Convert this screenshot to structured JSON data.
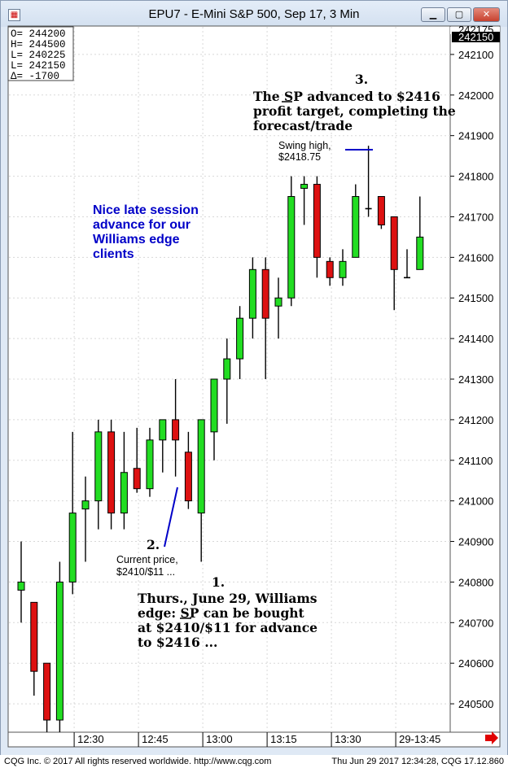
{
  "window": {
    "title": "EPU7 - E-Mini S&P 500, Sep 17, 3 Min",
    "min_label": "▁",
    "max_label": "▢",
    "close_label": "✕"
  },
  "ohlc_box": [
    "O= 244200",
    "H= 244500",
    "L= 240225",
    "L= 242150",
    "Δ=   -1700"
  ],
  "price_tags": [
    "242175",
    "242150"
  ],
  "footer": {
    "left": "CQG Inc. © 2017 All rights reserved worldwide. http://www.cqg.com",
    "right": "Thu Jun 29 2017 12:34:28, CQG 17.12.860"
  },
  "annotations": {
    "a1_num": "1.",
    "a1_lines": [
      "Thurs., June 29, Williams",
      "edge: SP can be bought",
      "at $2410/$11 for advance",
      "to $2416 ..."
    ],
    "a2_num": "2.",
    "a2_lines": [
      "Current price,",
      "$2410/$11 ..."
    ],
    "a3_num": "3.",
    "a3_lines": [
      "The SP advanced to $2416",
      "profit target, completing the",
      "forecast/trade"
    ],
    "swing_lines": [
      "Swing high,",
      "$2418.75"
    ],
    "nice_lines": [
      "Nice late session",
      "advance for our",
      "Williams edge",
      "clients"
    ]
  },
  "colors": {
    "up": "#22dd22",
    "down": "#dd1111",
    "grid": "#d8d8d8",
    "blue_line": "#0000c8"
  },
  "chart_data": {
    "type": "candlestick",
    "interval": "3 Min",
    "y_ticks": [
      240500,
      240600,
      240700,
      240800,
      240900,
      241000,
      241100,
      241200,
      241300,
      241400,
      241500,
      241600,
      241700,
      241800,
      241900,
      242000,
      242100
    ],
    "ylim": [
      240430,
      242170
    ],
    "x_tick_labels": [
      "12:30",
      "12:45",
      "13:00",
      "13:15",
      "13:30",
      "29-13:45"
    ],
    "grid": true,
    "candles": [
      {
        "o": 240780,
        "h": 240900,
        "l": 240700,
        "c": 240800
      },
      {
        "o": 240750,
        "h": 240750,
        "l": 240520,
        "c": 240580
      },
      {
        "o": 240600,
        "h": 240600,
        "l": 240430,
        "c": 240460
      },
      {
        "o": 240460,
        "h": 240850,
        "l": 240430,
        "c": 240800
      },
      {
        "o": 240800,
        "h": 241170,
        "l": 240770,
        "c": 240970
      },
      {
        "o": 240980,
        "h": 241060,
        "l": 240850,
        "c": 241000
      },
      {
        "o": 241000,
        "h": 241200,
        "l": 240930,
        "c": 241170
      },
      {
        "o": 241170,
        "h": 241200,
        "l": 240930,
        "c": 240970
      },
      {
        "o": 240970,
        "h": 241170,
        "l": 240930,
        "c": 241070
      },
      {
        "o": 241080,
        "h": 241180,
        "l": 241020,
        "c": 241030
      },
      {
        "o": 241030,
        "h": 241180,
        "l": 241010,
        "c": 241150
      },
      {
        "o": 241150,
        "h": 241200,
        "l": 241070,
        "c": 241200
      },
      {
        "o": 241200,
        "h": 241300,
        "l": 241060,
        "c": 241150
      },
      {
        "o": 241120,
        "h": 241170,
        "l": 240980,
        "c": 241000
      },
      {
        "o": 240970,
        "h": 241200,
        "l": 240850,
        "c": 241200
      },
      {
        "o": 241170,
        "h": 241300,
        "l": 241100,
        "c": 241300
      },
      {
        "o": 241300,
        "h": 241400,
        "l": 241190,
        "c": 241350
      },
      {
        "o": 241350,
        "h": 241480,
        "l": 241300,
        "c": 241450
      },
      {
        "o": 241450,
        "h": 241600,
        "l": 241400,
        "c": 241570
      },
      {
        "o": 241570,
        "h": 241600,
        "l": 241300,
        "c": 241450
      },
      {
        "o": 241480,
        "h": 241550,
        "l": 241400,
        "c": 241500
      },
      {
        "o": 241500,
        "h": 241800,
        "l": 241480,
        "c": 241750
      },
      {
        "o": 241770,
        "h": 241800,
        "l": 241680,
        "c": 241780
      },
      {
        "o": 241780,
        "h": 241800,
        "l": 241550,
        "c": 241600
      },
      {
        "o": 241590,
        "h": 241600,
        "l": 241530,
        "c": 241550
      },
      {
        "o": 241550,
        "h": 241620,
        "l": 241530,
        "c": 241590
      },
      {
        "o": 241600,
        "h": 241780,
        "l": 241600,
        "c": 241750
      },
      {
        "o": 241720,
        "h": 241875,
        "l": 241700,
        "c": 241720
      },
      {
        "o": 241750,
        "h": 241750,
        "l": 241670,
        "c": 241680
      },
      {
        "o": 241700,
        "h": 241700,
        "l": 241470,
        "c": 241570
      },
      {
        "o": 241550,
        "h": 241620,
        "l": 241550,
        "c": 241550
      },
      {
        "o": 241570,
        "h": 241750,
        "l": 241570,
        "c": 241650
      }
    ]
  }
}
